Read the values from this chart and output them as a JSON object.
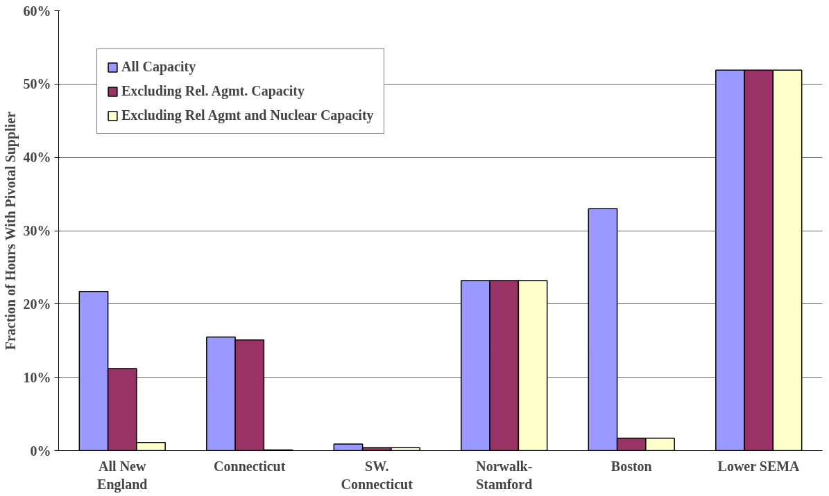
{
  "chart_data": {
    "type": "bar",
    "ylabel": "Fraction of Hours With Pivotal Supplier",
    "categories": [
      "All New\nEngland",
      "Connecticut",
      "SW.\nConnecticut",
      "Norwalk-\nStamford",
      "Boston",
      "Lower SEMA"
    ],
    "series": [
      {
        "name": "All Capacity",
        "color": "#9999ff",
        "values": [
          21.7,
          15.5,
          0.9,
          23.2,
          33.0,
          51.9
        ]
      },
      {
        "name": "Excluding Rel. Agmt. Capacity",
        "color": "#993366",
        "values": [
          11.2,
          15.1,
          0.4,
          23.2,
          1.7,
          51.9
        ]
      },
      {
        "name": "Excluding Rel Agmt and Nuclear Capacity",
        "color": "#ffffcc",
        "values": [
          1.1,
          0.1,
          0.4,
          23.2,
          1.7,
          51.9
        ]
      }
    ],
    "ylim": [
      0,
      60
    ],
    "yticks": [
      {
        "value": 0,
        "label": "0%"
      },
      {
        "value": 10,
        "label": "10%"
      },
      {
        "value": 20,
        "label": "20%"
      },
      {
        "value": 30,
        "label": "30%"
      },
      {
        "value": 40,
        "label": "40%"
      },
      {
        "value": 50,
        "label": "50%"
      },
      {
        "value": 60,
        "label": "60%"
      }
    ],
    "grid": "y",
    "legend": "top left"
  }
}
